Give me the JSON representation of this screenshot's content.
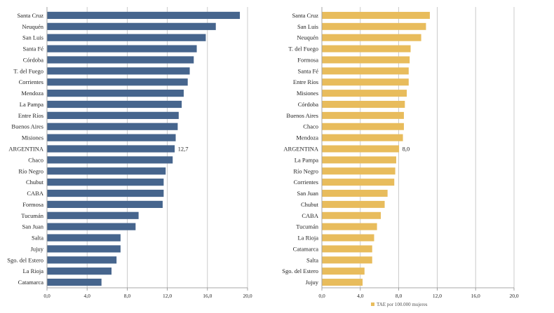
{
  "chart_data": [
    {
      "type": "bar",
      "orientation": "horizontal",
      "color": "#46658d",
      "categories": [
        "Santa Cruz",
        "Neuquén",
        "San Luis",
        "Santa Fé",
        "Córdoba",
        "T. del Fuego",
        "Corrientes",
        "Mendoza",
        "La Pampa",
        "Entre Ríos",
        "Buenos Aires",
        "Misiones",
        "ARGENTINA",
        "Chaco",
        "Río Negro",
        "Chubut",
        "CABA",
        "Formosa",
        "Tucumán",
        "San Juan",
        "Salta",
        "Jujuy",
        "Sgo. del Estero",
        "La Rioja",
        "Catamarca"
      ],
      "values": [
        19.2,
        16.8,
        15.8,
        14.9,
        14.6,
        14.2,
        14.0,
        13.6,
        13.4,
        13.1,
        13.0,
        12.8,
        12.7,
        12.5,
        11.8,
        11.6,
        11.6,
        11.5,
        9.1,
        8.8,
        7.3,
        7.3,
        6.9,
        6.4,
        5.4
      ],
      "xlim": [
        0,
        20
      ],
      "ticks": [
        "0,0",
        "4,0",
        "8,0",
        "12,0",
        "16,0",
        "20,0"
      ],
      "highlight": {
        "category": "ARGENTINA",
        "label": "12,7"
      },
      "grid": true
    },
    {
      "type": "bar",
      "orientation": "horizontal",
      "color": "#e8bc5c",
      "categories": [
        "Santa Cruz",
        "San Luis",
        "Neuquén",
        "T. del Fuego",
        "Formosa",
        "Santa Fé",
        "Entre Ríos",
        "Misiones",
        "Córdoba",
        "Buenos Aires",
        "Chaco",
        "Mendoza",
        "ARGENTINA",
        "La Pampa",
        "Río Negro",
        "Corrientes",
        "San Juan",
        "Chubut",
        "CABA",
        "Tucumán",
        "La Rioja",
        "Catamarca",
        "Salta",
        "Sgo. del Estero",
        "Jujuy"
      ],
      "values": [
        11.2,
        10.8,
        10.3,
        9.2,
        9.1,
        9.0,
        9.0,
        8.8,
        8.6,
        8.5,
        8.5,
        8.4,
        8.0,
        7.7,
        7.6,
        7.5,
        6.8,
        6.5,
        6.1,
        5.7,
        5.4,
        5.2,
        5.2,
        4.4,
        4.2
      ],
      "xlim": [
        0,
        20
      ],
      "ticks": [
        "0,0",
        "4,0",
        "8,0",
        "12,0",
        "16,0",
        "20,0"
      ],
      "highlight": {
        "category": "ARGENTINA",
        "label": "8,0"
      },
      "grid": true,
      "legend": "TAE por 100.000 mujeres"
    }
  ]
}
